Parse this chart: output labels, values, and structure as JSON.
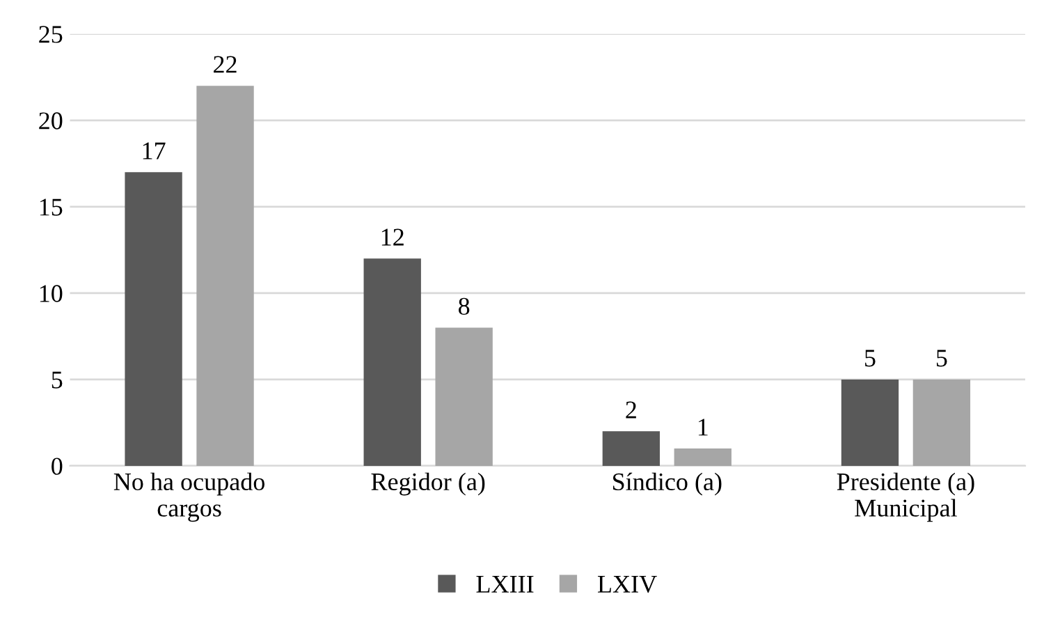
{
  "chart_data": {
    "type": "bar",
    "categories": [
      "No ha ocupado\ncargos",
      "Regidor (a)",
      "Síndico (a)",
      "Presidente (a)\nMunicipal"
    ],
    "series": [
      {
        "name": "LXIII",
        "color": "#595959",
        "values": [
          17,
          12,
          2,
          5
        ]
      },
      {
        "name": "LXIV",
        "color": "#a6a6a6",
        "values": [
          22,
          8,
          1,
          5
        ]
      }
    ],
    "ylim": [
      0,
      25
    ],
    "yticks": [
      0,
      5,
      10,
      15,
      20,
      25
    ],
    "grid": "y",
    "legend": "bottom",
    "data_labels": true
  }
}
